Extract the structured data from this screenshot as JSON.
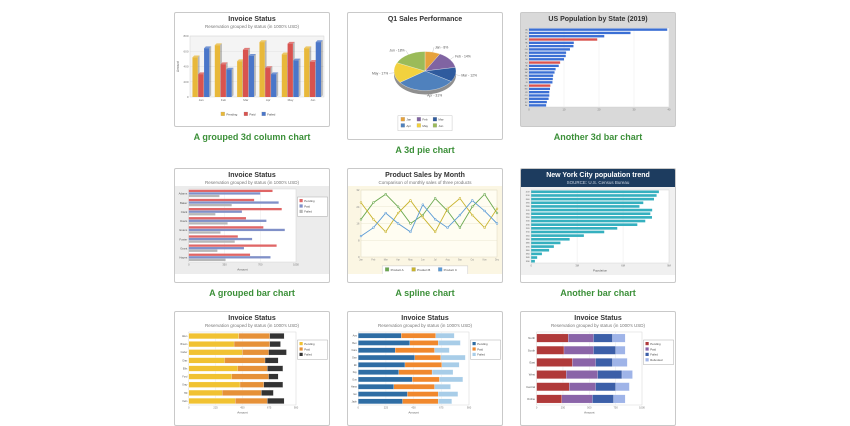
{
  "page": {
    "background": "#ffffff",
    "caption_color": "#3c9039"
  },
  "chart_data": [
    {
      "type": "column3d",
      "caption": "A grouped 3d column chart",
      "title": "Invoice Status",
      "subtitle": "Reservation grouped by status (in 1000's USD)",
      "ylabel": "Amount",
      "ylim": [
        0,
        800
      ],
      "categories": [
        "Jan",
        "Feb",
        "Mar",
        "Apr",
        "May",
        "Jun"
      ],
      "series": [
        {
          "name": "Pending",
          "color": "#e8b83a",
          "values": [
            520,
            680,
            470,
            720,
            560,
            640
          ]
        },
        {
          "name": "Paid",
          "color": "#d9534f",
          "values": [
            300,
            430,
            620,
            380,
            700,
            460
          ]
        },
        {
          "name": "Failed",
          "color": "#4a76c9",
          "values": [
            640,
            360,
            540,
            300,
            480,
            720
          ]
        }
      ],
      "legend": "bottom"
    },
    {
      "type": "pie",
      "caption": "A 3d pie chart",
      "title": "Q1 Sales Performance",
      "slices": [
        {
          "label": "Jan",
          "pct": 8,
          "color": "#e6a23c"
        },
        {
          "label": "Feb",
          "pct": 14,
          "color": "#8064a2"
        },
        {
          "label": "Mar",
          "pct": 12,
          "color": "#2f5b9e"
        },
        {
          "label": "Apr",
          "pct": 31,
          "color": "#4f81bd"
        },
        {
          "label": "May",
          "pct": 17,
          "color": "#f2d13e"
        },
        {
          "label": "Jun",
          "pct": 18,
          "color": "#9bbb59"
        }
      ],
      "legend": "bottom"
    },
    {
      "type": "barh",
      "caption": "Another 3d bar chart",
      "title": "US Population by State (2019)",
      "subtitle": "",
      "mode": "single",
      "panel": "#d9d9d9",
      "xmax": 40,
      "xlabel": "",
      "categories": [
        "CA",
        "TX",
        "FL",
        "NY",
        "PA",
        "IL",
        "OH",
        "GA",
        "NC",
        "MI",
        "NJ",
        "VA",
        "WA",
        "AZ",
        "MA",
        "TN",
        "IN",
        "MO",
        "MD",
        "WI",
        "CO",
        "MN",
        "SC",
        "AL"
      ],
      "series": [
        {
          "name": "Population (M)",
          "color": "#3b6fd4",
          "values": [
            39.5,
            29.0,
            21.5,
            19.5,
            12.8,
            12.7,
            11.7,
            10.6,
            10.5,
            10.0,
            8.9,
            8.5,
            7.6,
            7.3,
            6.9,
            6.8,
            6.7,
            6.1,
            6.0,
            5.8,
            5.8,
            5.6,
            5.1,
            4.9
          ],
          "highlight_color": "#d9534f",
          "highlight_indexes": [
            3,
            10,
            17
          ]
        }
      ],
      "legend": "none"
    },
    {
      "type": "barh",
      "caption": "A grouped bar chart",
      "title": "Invoice Status",
      "subtitle": "Reservation grouped by status (in 1000's USD)",
      "mode": "group",
      "panel": "#ececec",
      "xmax": 1050,
      "xlabel": "Amount",
      "categories": [
        "Adams",
        "Baker",
        "Clark",
        "Davis",
        "Evans",
        "Foster",
        "Grant",
        "Hayes"
      ],
      "series": [
        {
          "name": "Pending",
          "color": "#e06666",
          "values": [
            820,
            640,
            910,
            560,
            730,
            480,
            860,
            600
          ]
        },
        {
          "name": "Paid",
          "color": "#8090c8",
          "values": [
            700,
            880,
            520,
            760,
            940,
            620,
            540,
            800
          ]
        },
        {
          "name": "Failed",
          "color": "#b7b7b7",
          "values": [
            300,
            420,
            260,
            380,
            310,
            450,
            280,
            360
          ]
        }
      ],
      "legend": "right"
    },
    {
      "type": "spline",
      "caption": "A spline chart",
      "title": "Product Sales by Month",
      "subtitle": "Comparison of monthly sales of three products",
      "ylabel": "Sales",
      "ylim": [
        0,
        32
      ],
      "categories": [
        "Jan",
        "Feb",
        "Mar",
        "Apr",
        "May",
        "Jun",
        "Jul",
        "Aug",
        "Sep",
        "Oct",
        "Nov",
        "Dec"
      ],
      "series": [
        {
          "name": "Product A",
          "color": "#6aa84f",
          "values": [
            18,
            26,
            30,
            24,
            16,
            20,
            28,
            22,
            14,
            24,
            30,
            21
          ]
        },
        {
          "name": "Product B",
          "color": "#c9b42e",
          "values": [
            26,
            18,
            12,
            21,
            27,
            19,
            12,
            23,
            28,
            20,
            14,
            23
          ]
        },
        {
          "name": "Product C",
          "color": "#5b9bd5",
          "values": [
            10,
            14,
            21,
            16,
            12,
            25,
            18,
            14,
            20,
            27,
            22,
            16
          ]
        }
      ],
      "legend": "bottom"
    },
    {
      "type": "barh",
      "caption": "Another bar chart",
      "title": "New York City population trend",
      "subtitle": "SOURCE: U.S. Census Bureau",
      "mode": "single",
      "panel": "#f0f0f0",
      "xmax": 9,
      "tick_suffix": "M",
      "xlabel": "Population",
      "categories": [
        "2019",
        "2010",
        "2000",
        "1990",
        "1980",
        "1970",
        "1960",
        "1950",
        "1940",
        "1930",
        "1920",
        "1910",
        "1900",
        "1890",
        "1880",
        "1870",
        "1860",
        "1850",
        "1840",
        "1830"
      ],
      "series": [
        {
          "name": "Population",
          "color": "#35b0bf",
          "values": [
            8.34,
            8.19,
            8.02,
            7.32,
            7.07,
            7.9,
            7.78,
            7.89,
            7.45,
            6.93,
            5.62,
            4.77,
            3.44,
            2.51,
            1.91,
            1.48,
            1.17,
            0.7,
            0.39,
            0.24
          ]
        }
      ],
      "legend": "none"
    },
    {
      "type": "barh",
      "caption": "",
      "title": "Invoice Status",
      "subtitle": "Reservation grouped by status (in 1000's USD)",
      "mode": "stack",
      "panel": "#ffffff",
      "xmax": 900,
      "xlabel": "Amount",
      "categories": [
        "Allen",
        "Brown",
        "Carter",
        "Diaz",
        "Ellis",
        "Ford",
        "Gray",
        "Hill",
        "Irwin"
      ],
      "series": [
        {
          "name": "Pending",
          "color": "#f1c232",
          "values": [
            420,
            380,
            450,
            300,
            410,
            360,
            430,
            280,
            390
          ]
        },
        {
          "name": "Paid",
          "color": "#e69138",
          "values": [
            260,
            300,
            220,
            340,
            250,
            310,
            200,
            330,
            270
          ]
        },
        {
          "name": "Failed",
          "color": "#333333",
          "values": [
            120,
            90,
            150,
            110,
            130,
            80,
            160,
            100,
            140
          ]
        }
      ],
      "legend": "right"
    },
    {
      "type": "barh",
      "caption": "",
      "title": "Invoice Status",
      "subtitle": "Reservation grouped by status (in 1000's USD)",
      "mode": "stack",
      "panel": "#ffffff",
      "xmax": 900,
      "xlabel": "Amount",
      "categories": [
        "Ava",
        "Ben",
        "Cara",
        "Dan",
        "Eli",
        "Fay",
        "Gus",
        "Hana",
        "Ian",
        "Jade"
      ],
      "series": [
        {
          "name": "Pending",
          "color": "#2e6da4",
          "values": [
            350,
            420,
            300,
            460,
            380,
            330,
            440,
            290,
            400,
            360
          ]
        },
        {
          "name": "Paid",
          "color": "#f0882d",
          "values": [
            280,
            230,
            320,
            210,
            300,
            270,
            220,
            330,
            250,
            290
          ]
        },
        {
          "name": "Failed",
          "color": "#a8cde8",
          "values": [
            150,
            180,
            120,
            200,
            140,
            170,
            190,
            130,
            160,
            110
          ]
        }
      ],
      "legend": "right"
    },
    {
      "type": "barh",
      "caption": "",
      "title": "Invoice Status",
      "subtitle": "Reservation grouped by status (in 1000's USD)",
      "mode": "stack",
      "panel": "#ffffff",
      "xmax": 1000,
      "xlabel": "Amount",
      "categories": [
        "North",
        "South",
        "East",
        "West",
        "Central",
        "Online"
      ],
      "series": [
        {
          "name": "Pending",
          "color": "#b03a3a",
          "values": [
            300,
            260,
            340,
            280,
            310,
            240
          ]
        },
        {
          "name": "Paid",
          "color": "#8a64a8",
          "values": [
            240,
            280,
            220,
            300,
            250,
            290
          ]
        },
        {
          "name": "Failed",
          "color": "#3c5fa8",
          "values": [
            180,
            210,
            160,
            230,
            190,
            200
          ]
        },
        {
          "name": "Refunded",
          "color": "#9fb4e8",
          "values": [
            120,
            90,
            140,
            100,
            130,
            110
          ]
        }
      ],
      "legend": "right"
    }
  ]
}
